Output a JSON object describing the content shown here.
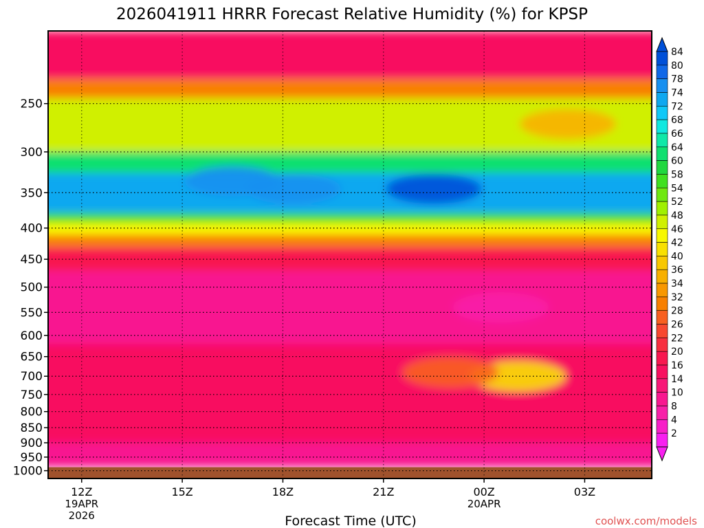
{
  "chart_data": {
    "type": "heatmap",
    "title": "2026041911 HRRR Forecast Relative Humidity (%) for KPSP",
    "xlabel": "Forecast Time (UTC)",
    "ylabel": "",
    "credit": "coolwx.com/models",
    "x_ticks": [
      {
        "hour": 12,
        "label": "12Z",
        "sub": [
          "19APR",
          "2026"
        ]
      },
      {
        "hour": 15,
        "label": "15Z",
        "sub": []
      },
      {
        "hour": 18,
        "label": "18Z",
        "sub": []
      },
      {
        "hour": 21,
        "label": "21Z",
        "sub": []
      },
      {
        "hour": 24,
        "label": "00Z",
        "sub": [
          "20APR"
        ]
      },
      {
        "hour": 27,
        "label": "03Z",
        "sub": []
      }
    ],
    "xlim_hours": [
      11,
      29
    ],
    "y_levels_hpa": [
      250,
      300,
      350,
      400,
      450,
      500,
      550,
      600,
      650,
      700,
      750,
      800,
      850,
      900,
      950,
      1000
    ],
    "ylim_hpa": [
      1030,
      190
    ],
    "ground_hpa": 987,
    "grid": true,
    "colorbar": {
      "labels": [
        84,
        80,
        78,
        74,
        72,
        68,
        66,
        64,
        60,
        58,
        54,
        52,
        48,
        46,
        42,
        40,
        36,
        34,
        32,
        28,
        26,
        22,
        20,
        16,
        14,
        10,
        8,
        4,
        2
      ],
      "colors": [
        "#0050d8",
        "#1068e8",
        "#1890f0",
        "#10a8f0",
        "#10c8f8",
        "#10e8e0",
        "#10e8a8",
        "#10e070",
        "#20d840",
        "#40e020",
        "#70e810",
        "#a0f000",
        "#d0f000",
        "#f8f800",
        "#f8e000",
        "#f8c800",
        "#f8b000",
        "#f89800",
        "#f88000",
        "#f86020",
        "#f84830",
        "#f83040",
        "#f81850",
        "#f81060",
        "#f81878",
        "#f81890",
        "#f820a8",
        "#f820c8",
        "#f820f0"
      ],
      "placement": "right"
    },
    "humidity_bands": [
      {
        "p_top": 190,
        "p_bottom": 228,
        "rh": 14
      },
      {
        "p_top": 228,
        "p_bottom": 245,
        "rh": 28
      },
      {
        "p_top": 245,
        "p_bottom": 300,
        "rh": 46
      },
      {
        "p_top": 300,
        "p_bottom": 325,
        "rh": 60
      },
      {
        "p_top": 325,
        "p_bottom": 378,
        "rh": 72
      },
      {
        "p_top": 378,
        "p_bottom": 392,
        "rh": 56
      },
      {
        "p_top": 392,
        "p_bottom": 410,
        "rh": 44
      },
      {
        "p_top": 410,
        "p_bottom": 430,
        "rh": 30
      },
      {
        "p_top": 430,
        "p_bottom": 470,
        "rh": 18
      },
      {
        "p_top": 470,
        "p_bottom": 620,
        "rh": 8
      },
      {
        "p_top": 620,
        "p_bottom": 900,
        "rh": 14
      },
      {
        "p_top": 900,
        "p_bottom": 987,
        "rh": 8
      }
    ],
    "humidity_features": [
      {
        "name": "moist-core-22z",
        "hour": 22.5,
        "p": 345,
        "rh": 80
      },
      {
        "name": "moist-core-16z",
        "hour": 16.5,
        "p": 335,
        "rh": 76
      },
      {
        "name": "moist-core-18z",
        "hour": 18.3,
        "p": 345,
        "rh": 76
      },
      {
        "name": "dry-aloft-02z",
        "hour": 26.5,
        "p": 270,
        "rh": 34
      },
      {
        "name": "dry-mid-00z",
        "hour": 24.5,
        "p": 540,
        "rh": 4
      },
      {
        "name": "moist-lower-01z",
        "hour": 25,
        "p": 700,
        "rh": 40
      },
      {
        "name": "moist-lower-23z",
        "hour": 23,
        "p": 690,
        "rh": 26
      }
    ]
  }
}
